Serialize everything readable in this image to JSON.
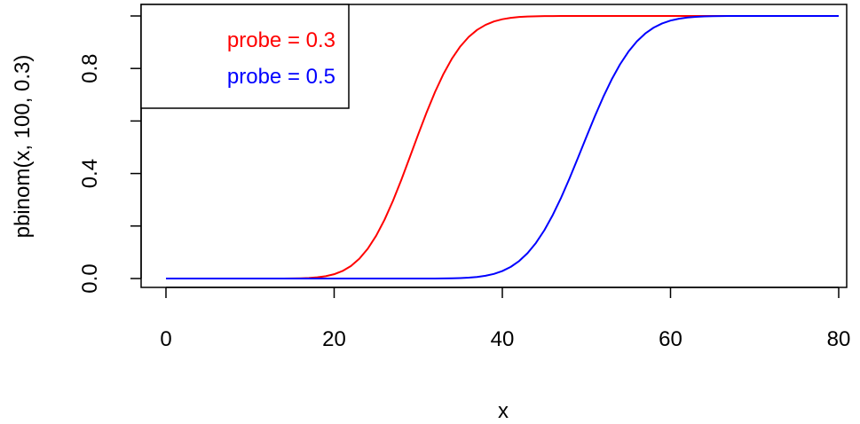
{
  "chart_data": {
    "type": "line",
    "xlabel": "x",
    "ylabel": "pbinom(x, 100, 0.3)",
    "xlim": [
      0,
      80
    ],
    "ylim": [
      0,
      1
    ],
    "x_ticks": [
      0,
      20,
      40,
      60,
      80
    ],
    "x_tick_labels": [
      "0",
      "20",
      "40",
      "60",
      "80"
    ],
    "y_ticks": [
      0,
      0.2,
      0.4,
      0.6,
      0.8,
      1.0
    ],
    "y_tick_labels": [
      "0.0",
      "0.4",
      "0.8"
    ],
    "y_labeled_ticks": [
      0,
      0.4,
      0.8
    ],
    "grid": false,
    "legend_position": "top-left",
    "series": [
      {
        "name": "probe = 0.3",
        "color": "#ff0000",
        "binomial_n": 100,
        "binomial_p": 0.3,
        "x_start": 0,
        "x_end": 80,
        "step": 1
      },
      {
        "name": "probe = 0.5",
        "color": "#0000ff",
        "binomial_n": 100,
        "binomial_p": 0.5,
        "x_start": 0,
        "x_end": 80,
        "step": 1
      }
    ]
  }
}
